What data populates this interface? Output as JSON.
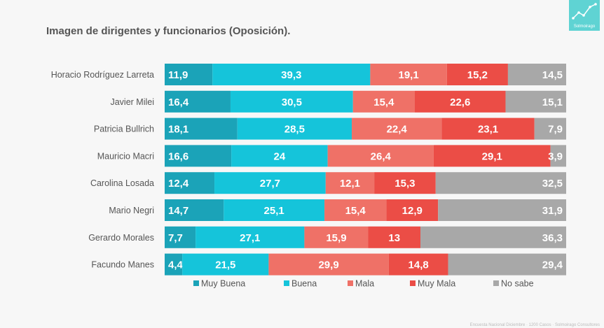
{
  "title": "Imagen de dirigentes y funcionarios (Oposición).",
  "logo": {
    "brand": "Solmoirago",
    "icon": "trend-line-icon"
  },
  "footer": "Encuesta Nacional Diciembre · 1200 Casos · Solmoirago Consultores",
  "chart_data": {
    "type": "bar",
    "orientation": "horizontal",
    "stacked": true,
    "categories": [
      "Horacio Rodríguez Larreta",
      "Javier Milei",
      "Patricia Bullrich",
      "Mauricio Macri",
      "Carolina Losada",
      "Mario Negri",
      "Gerardo Morales",
      "Facundo Manes"
    ],
    "series": [
      {
        "name": "Muy Buena",
        "color": "#1ba3b8",
        "values": [
          11.9,
          16.4,
          18.1,
          16.6,
          12.4,
          14.7,
          7.7,
          4.4
        ],
        "labels": [
          "11,9",
          "16,4",
          "18,1",
          "16,6",
          "12,4",
          "14,7",
          "7,7",
          "4,4"
        ]
      },
      {
        "name": "Buena",
        "color": "#15c4da",
        "values": [
          39.3,
          30.5,
          28.5,
          24,
          27.7,
          25.1,
          27.1,
          21.5
        ],
        "labels": [
          "39,3",
          "30,5",
          "28,5",
          "24",
          "27,7",
          "25,1",
          "27,1",
          "21,5"
        ]
      },
      {
        "name": "Mala",
        "color": "#ef7167",
        "values": [
          19.1,
          15.4,
          22.4,
          26.4,
          12.1,
          15.4,
          15.9,
          29.9
        ],
        "labels": [
          "19,1",
          "15,4",
          "22,4",
          "26,4",
          "12,1",
          "15,4",
          "15,9",
          "29,9"
        ]
      },
      {
        "name": "Muy Mala",
        "color": "#eb4d46",
        "values": [
          15.2,
          22.6,
          23.1,
          29.1,
          15.3,
          12.9,
          13,
          14.8
        ],
        "labels": [
          "15,2",
          "22,6",
          "23,1",
          "29,1",
          "15,3",
          "12,9",
          "13",
          "14,8"
        ]
      },
      {
        "name": "No sabe",
        "color": "#a8a8a8",
        "values": [
          14.5,
          15.1,
          7.9,
          3.9,
          32.5,
          31.9,
          36.3,
          29.4
        ],
        "labels": [
          "14,5",
          "15,1",
          "7,9",
          "3,9",
          "32,5",
          "31,9",
          "36,3",
          "29,4"
        ]
      }
    ],
    "xlim": [
      0,
      100
    ],
    "legend_position": "bottom",
    "grid": false
  }
}
